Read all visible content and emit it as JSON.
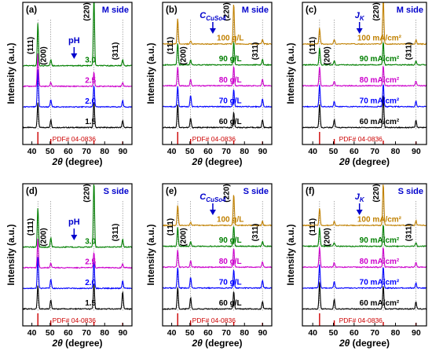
{
  "figure": {
    "y_axis_label": "Intensity (a.u.)",
    "x_axis_symbol": "2θ",
    "x_axis_unit": " (degree)",
    "pdf_reference": "PDF# 04-0836",
    "peak_labels": [
      "(111)",
      "(200)",
      "(220)",
      "(311)"
    ],
    "peak_positions": [
      43.3,
      50.4,
      74.1,
      89.9
    ],
    "colors": {
      "black": "#000000",
      "blue": "#0000ff",
      "magenta": "#cc00cc",
      "green": "#007f00",
      "orange": "#c08000",
      "pdf_red": "#cc0000",
      "panel_title": "#0000cc"
    }
  },
  "chart_data": [
    {
      "type": "line",
      "panel_label": "(a)",
      "side_label": "M side",
      "arrow_label": "pH",
      "arrow_sub": "",
      "xlim": [
        35,
        95
      ],
      "xticks": [
        40,
        50,
        60,
        70,
        80,
        90
      ],
      "series": [
        {
          "name": "1.5",
          "color": "#000000",
          "peaks": [
            32,
            10,
            33,
            9
          ]
        },
        {
          "name": "2.0",
          "color": "#0000ff",
          "peaks": [
            48,
            9,
            28,
            8
          ]
        },
        {
          "name": "2.5",
          "color": "#cc00cc",
          "peaks": [
            42,
            5,
            18,
            5
          ]
        },
        {
          "name": "3.0",
          "color": "#007f00",
          "peaks": [
            55,
            8,
            90,
            8
          ]
        }
      ]
    },
    {
      "type": "line",
      "panel_label": "(b)",
      "side_label": "M side",
      "arrow_label": "C",
      "arrow_sub": "CuSo4",
      "xlim": [
        35,
        95
      ],
      "xticks": [
        40,
        50,
        60,
        70,
        80,
        90
      ],
      "series": [
        {
          "name": "60 g/L",
          "color": "#000000",
          "peaks": [
            30,
            12,
            20,
            10
          ]
        },
        {
          "name": "70 g/L",
          "color": "#0000ff",
          "peaks": [
            26,
            14,
            22,
            10
          ]
        },
        {
          "name": "80 g/L",
          "color": "#cc00cc",
          "peaks": [
            24,
            8,
            25,
            8
          ]
        },
        {
          "name": "90 g/L",
          "color": "#007f00",
          "peaks": [
            28,
            6,
            30,
            7
          ]
        },
        {
          "name": "100 g/L",
          "color": "#c08000",
          "peaks": [
            32,
            4,
            52,
            6
          ]
        }
      ]
    },
    {
      "type": "line",
      "panel_label": "(c)",
      "side_label": "M side",
      "arrow_label": "J",
      "arrow_sub": "K",
      "xlim": [
        35,
        95
      ],
      "xticks": [
        40,
        50,
        60,
        70,
        80,
        90
      ],
      "series": [
        {
          "name": "60 mA/cm²",
          "color": "#000000",
          "peaks": [
            30,
            10,
            42,
            9
          ]
        },
        {
          "name": "70 mA/cm²",
          "color": "#0000ff",
          "peaks": [
            28,
            7,
            30,
            7
          ]
        },
        {
          "name": "80 mA/cm²",
          "color": "#cc00cc",
          "peaks": [
            24,
            6,
            26,
            6
          ]
        },
        {
          "name": "90 mA/cm²",
          "color": "#007f00",
          "peaks": [
            22,
            5,
            30,
            5
          ]
        },
        {
          "name": "100 mA/cm²",
          "color": "#c08000",
          "peaks": [
            20,
            6,
            60,
            5
          ]
        }
      ]
    },
    {
      "type": "line",
      "panel_label": "(d)",
      "side_label": "S side",
      "arrow_label": "pH",
      "arrow_sub": "",
      "xlim": [
        35,
        95
      ],
      "xticks": [
        40,
        50,
        60,
        70,
        80,
        90
      ],
      "series": [
        {
          "name": "1.5",
          "color": "#000000",
          "peaks": [
            30,
            12,
            33,
            22
          ]
        },
        {
          "name": "2.0",
          "color": "#0000ff",
          "peaks": [
            40,
            12,
            34,
            10
          ]
        },
        {
          "name": "2.5",
          "color": "#cc00cc",
          "peaks": [
            38,
            6,
            20,
            5
          ]
        },
        {
          "name": "3.0",
          "color": "#007f00",
          "peaks": [
            50,
            12,
            85,
            10
          ]
        }
      ]
    },
    {
      "type": "line",
      "panel_label": "(e)",
      "side_label": "S side",
      "arrow_label": "C",
      "arrow_sub": "CuSo4",
      "xlim": [
        35,
        95
      ],
      "xticks": [
        40,
        50,
        60,
        70,
        80,
        90
      ],
      "series": [
        {
          "name": "60 g/L",
          "color": "#000000",
          "peaks": [
            28,
            14,
            22,
            10
          ]
        },
        {
          "name": "70 g/L",
          "color": "#0000ff",
          "peaks": [
            26,
            14,
            24,
            10
          ]
        },
        {
          "name": "80 g/L",
          "color": "#cc00cc",
          "peaks": [
            22,
            8,
            24,
            7
          ]
        },
        {
          "name": "90 g/L",
          "color": "#007f00",
          "peaks": [
            24,
            6,
            26,
            6
          ]
        },
        {
          "name": "100 g/L",
          "color": "#c08000",
          "peaks": [
            26,
            4,
            40,
            5
          ]
        }
      ]
    },
    {
      "type": "line",
      "panel_label": "(f)",
      "side_label": "S side",
      "arrow_label": "J",
      "arrow_sub": "K",
      "xlim": [
        35,
        95
      ],
      "xticks": [
        40,
        50,
        60,
        70,
        80,
        90
      ],
      "series": [
        {
          "name": "60 mA/cm²",
          "color": "#000000",
          "peaks": [
            34,
            12,
            30,
            9
          ]
        },
        {
          "name": "70 mA/cm²",
          "color": "#0000ff",
          "peaks": [
            30,
            8,
            28,
            7
          ]
        },
        {
          "name": "80 mA/cm²",
          "color": "#cc00cc",
          "peaks": [
            26,
            6,
            26,
            6
          ]
        },
        {
          "name": "90 mA/cm²",
          "color": "#007f00",
          "peaks": [
            24,
            5,
            28,
            5
          ]
        },
        {
          "name": "100 mA/cm²",
          "color": "#c08000",
          "peaks": [
            22,
            5,
            55,
            6
          ]
        }
      ]
    }
  ]
}
